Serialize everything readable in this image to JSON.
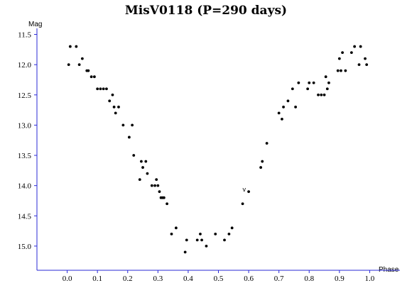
{
  "chart_data": {
    "type": "scatter",
    "title": "MisV0118 (P=290 days)",
    "xlabel": "Phase",
    "ylabel": "Mag",
    "xlim": [
      -0.1,
      1.1
    ],
    "ylim": [
      15.4,
      11.4
    ],
    "y_inverted": true,
    "xticks": [
      "0.0",
      "0.1",
      "0.2",
      "0.3",
      "0.4",
      "0.5",
      "0.6",
      "0.7",
      "0.8",
      "0.9",
      "1.0"
    ],
    "yticks": [
      "11.5",
      "12.0",
      "12.5",
      "13.0",
      "13.5",
      "14.0",
      "14.5",
      "15.0"
    ],
    "grid": false,
    "annotations": [
      {
        "text": "v",
        "x": 0.585,
        "y": 14.1
      }
    ],
    "series": [
      {
        "x": [
          0.005,
          0.01,
          0.03,
          0.04,
          0.05,
          0.065,
          0.07,
          0.08,
          0.09,
          0.1,
          0.11,
          0.12,
          0.13,
          0.14,
          0.15,
          0.155,
          0.16,
          0.17,
          0.185,
          0.205,
          0.215,
          0.22,
          0.24,
          0.245,
          0.25,
          0.26,
          0.265,
          0.28,
          0.29,
          0.295,
          0.3,
          0.305,
          0.31,
          0.315,
          0.32,
          0.33,
          0.345,
          0.36,
          0.39,
          0.395,
          0.43,
          0.44,
          0.445,
          0.46,
          0.49,
          0.52,
          0.535,
          0.545,
          0.58,
          0.6,
          0.64,
          0.645,
          0.66,
          0.7,
          0.71,
          0.715,
          0.73,
          0.745,
          0.755,
          0.765,
          0.795,
          0.8,
          0.815,
          0.83,
          0.84,
          0.85,
          0.855,
          0.86,
          0.865,
          0.895,
          0.9,
          0.905,
          0.91,
          0.92,
          0.94,
          0.95,
          0.965,
          0.97,
          0.985,
          0.99
        ],
        "y": [
          12.0,
          11.7,
          11.7,
          12.0,
          11.9,
          12.1,
          12.1,
          12.2,
          12.2,
          12.4,
          12.4,
          12.4,
          12.4,
          12.6,
          12.5,
          12.7,
          12.8,
          12.7,
          13.0,
          13.2,
          13.0,
          13.5,
          13.9,
          13.6,
          13.7,
          13.6,
          13.8,
          14.0,
          14.0,
          13.9,
          14.0,
          14.1,
          14.2,
          14.2,
          14.2,
          14.3,
          14.8,
          14.7,
          15.1,
          14.9,
          14.9,
          14.8,
          14.9,
          15.0,
          14.8,
          14.9,
          14.8,
          14.7,
          14.3,
          14.1,
          13.7,
          13.6,
          13.3,
          12.8,
          12.9,
          12.7,
          12.6,
          12.4,
          12.7,
          12.3,
          12.4,
          12.3,
          12.3,
          12.5,
          12.5,
          12.5,
          12.2,
          12.4,
          12.3,
          12.1,
          11.9,
          12.1,
          11.8,
          12.1,
          11.8,
          11.7,
          12.0,
          11.7,
          11.9,
          12.0
        ]
      }
    ]
  }
}
